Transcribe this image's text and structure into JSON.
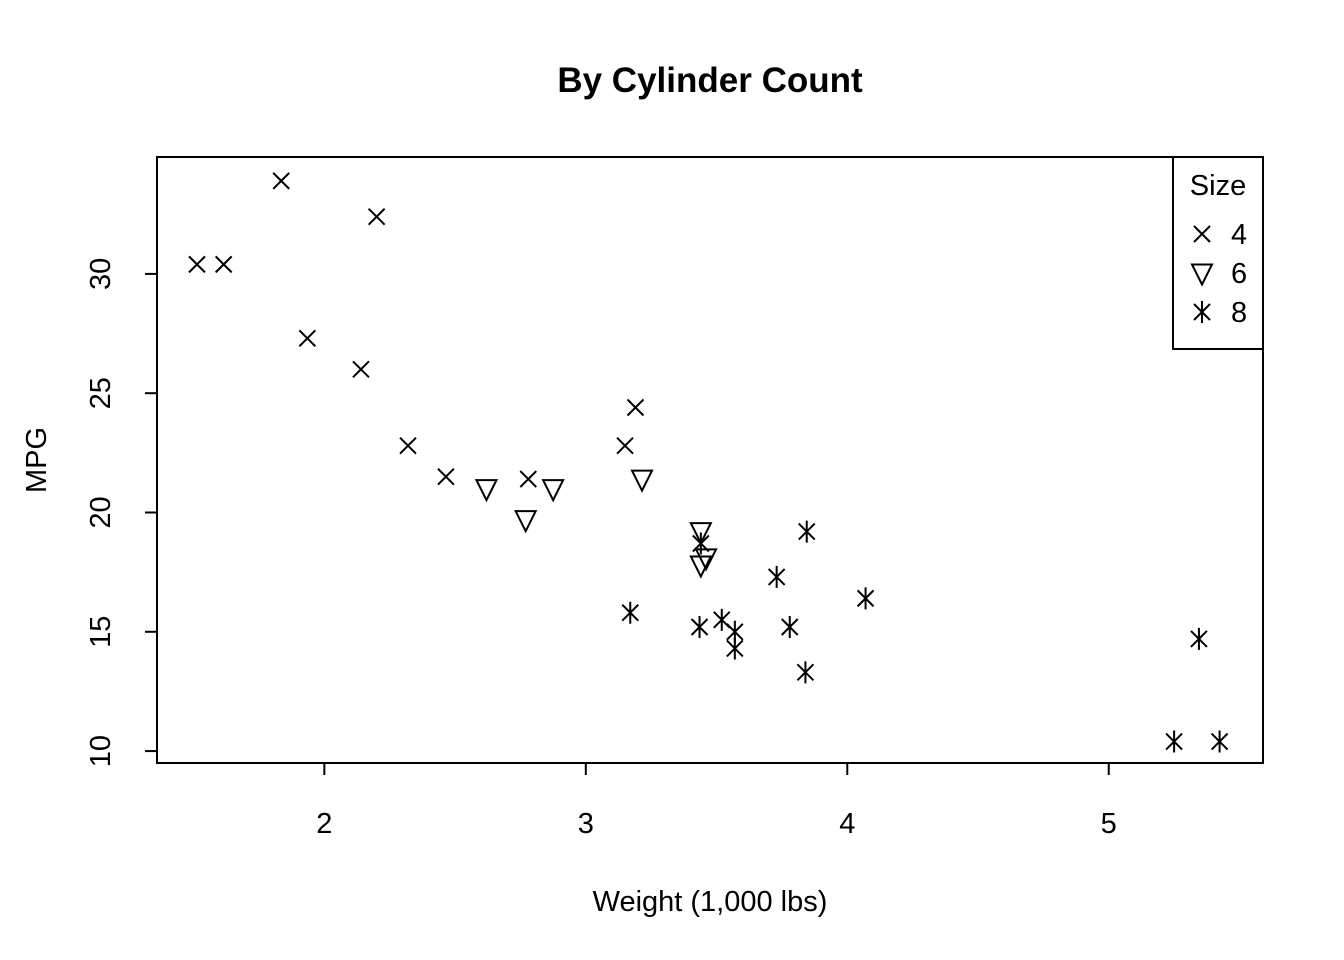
{
  "chart_data": {
    "type": "scatter",
    "title": "By Cylinder Count",
    "xlabel": "Weight (1,000 lbs)",
    "ylabel": "MPG",
    "xlim": [
      1.36,
      5.59
    ],
    "ylim": [
      9.5,
      34.9
    ],
    "x_ticks": [
      2,
      3,
      4,
      5
    ],
    "y_ticks": [
      10,
      15,
      20,
      25,
      30
    ],
    "grid": false,
    "legend": {
      "title": "Size",
      "position": "top-right"
    },
    "series": [
      {
        "name": "4",
        "marker": "cross",
        "points": [
          {
            "x": 1.513,
            "y": 30.4
          },
          {
            "x": 1.615,
            "y": 30.4
          },
          {
            "x": 1.835,
            "y": 33.9
          },
          {
            "x": 1.935,
            "y": 27.3
          },
          {
            "x": 2.14,
            "y": 26.0
          },
          {
            "x": 2.2,
            "y": 32.4
          },
          {
            "x": 2.32,
            "y": 22.8
          },
          {
            "x": 2.465,
            "y": 21.5
          },
          {
            "x": 2.78,
            "y": 21.4
          },
          {
            "x": 3.15,
            "y": 22.8
          },
          {
            "x": 3.19,
            "y": 24.4
          }
        ]
      },
      {
        "name": "6",
        "marker": "triangle-down",
        "points": [
          {
            "x": 2.62,
            "y": 21.0
          },
          {
            "x": 2.77,
            "y": 19.7
          },
          {
            "x": 2.875,
            "y": 21.0
          },
          {
            "x": 3.215,
            "y": 21.4
          },
          {
            "x": 3.44,
            "y": 19.2
          },
          {
            "x": 3.44,
            "y": 17.8
          },
          {
            "x": 3.46,
            "y": 18.1
          }
        ]
      },
      {
        "name": "8",
        "marker": "asterisk",
        "points": [
          {
            "x": 3.17,
            "y": 15.8
          },
          {
            "x": 3.435,
            "y": 15.2
          },
          {
            "x": 3.44,
            "y": 18.7
          },
          {
            "x": 3.52,
            "y": 15.5
          },
          {
            "x": 3.57,
            "y": 14.3
          },
          {
            "x": 3.57,
            "y": 15.0
          },
          {
            "x": 3.73,
            "y": 17.3
          },
          {
            "x": 3.78,
            "y": 15.2
          },
          {
            "x": 3.84,
            "y": 13.3
          },
          {
            "x": 3.845,
            "y": 19.2
          },
          {
            "x": 4.07,
            "y": 16.4
          },
          {
            "x": 5.25,
            "y": 10.4
          },
          {
            "x": 5.345,
            "y": 14.7
          },
          {
            "x": 5.424,
            "y": 10.4
          }
        ]
      }
    ]
  }
}
